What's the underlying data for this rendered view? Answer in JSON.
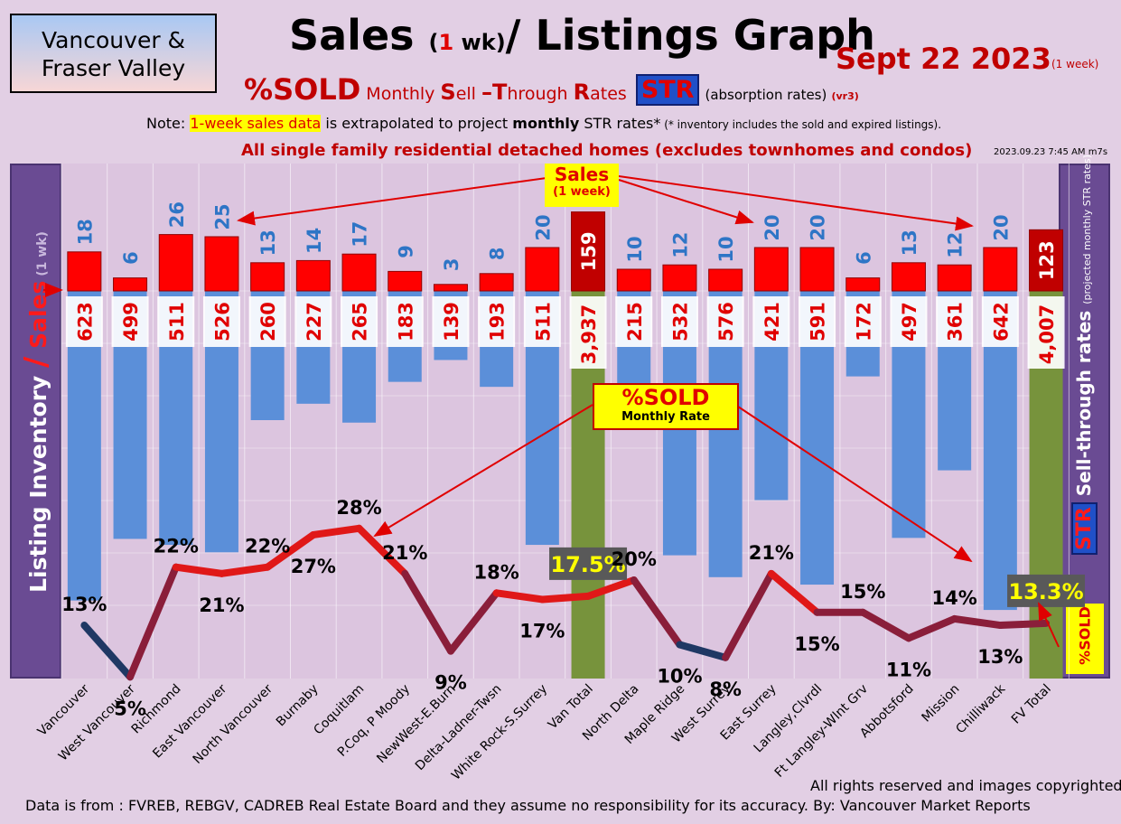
{
  "region": {
    "line1": "Vancouver &",
    "line2": "Fraser Valley"
  },
  "title": {
    "part1": "Sales ",
    "paren_open": "(",
    "weeks": "1",
    "wk": " wk)",
    "part2": "/ Listings Graph"
  },
  "date": "Sept 22  2023",
  "date_sub": "(1 week)",
  "subtitle": {
    "pct_sold": "%SOLD",
    "monthly": " Monthly ",
    "S": "S",
    "ell": "ell ",
    "dash_T": "–T",
    "hrough": "hrough ",
    "R": "R",
    "ates": "ates",
    "str": "STR",
    "absorption": "(absorption rates)",
    "vr3": "(vr3)"
  },
  "note": {
    "prefix": "Note: ",
    "highlight": "1-week sales data",
    "mid": " is extrapolated to project ",
    "bold": "monthly",
    "suffix": " STR rates*",
    "small": " (* inventory includes the sold and expired listings)."
  },
  "all_single": "All single family residential detached homes (excludes townhomes and condos)",
  "timestamp": "2023.09.23 7:45 AM m7s",
  "left_label": {
    "listing": "Listing Inventory ",
    "slash": "/",
    "sales": " Sales",
    "wk": " (1 wk)"
  },
  "right_label": {
    "str": "STR",
    "text": " Sell-through rates ",
    "small": "(projected monthly STR rates)"
  },
  "pct_sold_tag": "%SOLD",
  "sales_callout": {
    "line1": "Sales",
    "line2": "(1 week)"
  },
  "sold_callout": {
    "line1": "%SOLD",
    "line2": "Monthly Rate"
  },
  "footer": {
    "rights": "All rights reserved and  images copyrighted",
    "source": "Data is from : FVREB, REBGV, CADREB Real Estate Board and they assume no responsibility for its accuracy. By: Vancouver Market Reports"
  },
  "colors": {
    "sales_bar": "#ff0000",
    "listing_bar": "#5b8fd9",
    "total_bar": "#77933c",
    "line_high": "#e01818",
    "line_low": "#1f3864",
    "background": "#e2cfe4",
    "panel": "#6a4b93"
  },
  "chart_data": {
    "type": "bar",
    "categories": [
      "Vancouver",
      "West Vancouver",
      "Richmond",
      "East Vancouver",
      "North Vancouver",
      "Burnaby",
      "Coquitlam",
      "P.Coq, P Moody",
      "NewWest-E.Burn",
      "Delta-Ladner-Twsn",
      "White Rock-S.Surrey",
      "Van Total",
      "North Delta",
      "Maple Ridge",
      "West Surrey",
      "East Surrey",
      "Langley,Clvrdl",
      "Ft Langley-Wlnt Grv",
      "Abbotsford",
      "Mission",
      "Chilliwack",
      "FV Total"
    ],
    "series": [
      {
        "name": "Sales",
        "values": [
          18,
          6,
          26,
          25,
          13,
          14,
          17,
          9,
          3,
          8,
          20,
          159,
          10,
          12,
          10,
          20,
          20,
          6,
          13,
          12,
          20,
          123
        ],
        "labels": [
          "18",
          "6",
          "26",
          "25",
          "13",
          "14",
          "17",
          "9",
          "3",
          "8",
          "20",
          "159",
          "10",
          "12",
          "10",
          "20",
          "20",
          "6",
          "13",
          "12",
          "20",
          "123"
        ]
      },
      {
        "name": "Listing Inventory",
        "values": [
          623,
          499,
          511,
          526,
          260,
          227,
          265,
          183,
          139,
          193,
          511,
          3937,
          215,
          532,
          576,
          421,
          591,
          172,
          497,
          361,
          642,
          4007
        ],
        "labels": [
          "623",
          "499",
          "511",
          "526",
          "260",
          "227",
          "265",
          "183",
          "139",
          "193",
          "511",
          "3,937",
          "215",
          "532",
          "576",
          "421",
          "591",
          "172",
          "497",
          "361",
          "642",
          "4,007"
        ]
      },
      {
        "name": "%SOLD",
        "values": [
          13,
          5,
          22,
          21,
          22,
          27,
          28,
          21,
          9,
          18,
          17,
          17.5,
          20,
          10,
          8,
          21,
          15,
          15,
          11,
          14,
          13,
          13.3
        ],
        "labels": [
          "13%",
          "5%",
          "22%",
          "21%",
          "22%",
          "27%",
          "28%",
          "21%",
          "9%",
          "18%",
          "17%",
          "17.5%",
          "20%",
          "10%",
          "8%",
          "21%",
          "15%",
          "15%",
          "11%",
          "14%",
          "13%",
          "13.3%"
        ]
      }
    ],
    "total_categories": [
      "Van Total",
      "FV Total"
    ]
  }
}
